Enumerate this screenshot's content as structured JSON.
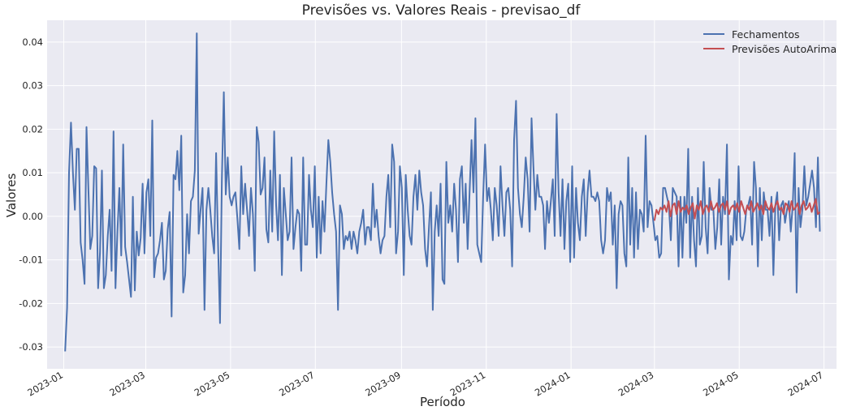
{
  "chart_data": {
    "type": "line",
    "title": "Previsões vs. Valores Reais - previsao_df",
    "xlabel": "Período",
    "ylabel": "Valores",
    "x_range": [
      "2022-12-20",
      "2024-07-10"
    ],
    "ylim": [
      -0.035,
      0.045
    ],
    "y_ticks": [
      -0.03,
      -0.02,
      -0.01,
      0.0,
      0.01,
      0.02,
      0.03,
      0.04
    ],
    "y_tick_labels": [
      "-0.03",
      "-0.02",
      "-0.01",
      "0.00",
      "0.01",
      "0.02",
      "0.03",
      "0.04"
    ],
    "x_ticks": [
      "2023-01-01",
      "2023-03-01",
      "2023-05-01",
      "2023-07-01",
      "2023-09-01",
      "2023-11-01",
      "2024-01-01",
      "2024-03-01",
      "2024-05-01",
      "2024-07-01"
    ],
    "x_tick_labels": [
      "2023-01",
      "2023-03",
      "2023-05",
      "2023-07",
      "2023-09",
      "2023-11",
      "2024-01",
      "2024-03",
      "2024-05",
      "2024-07"
    ],
    "grid": true,
    "legend_position": "top-right",
    "series": [
      {
        "name": "Fechamentos",
        "color": "#4c72b0",
        "x_start": "2023-01-02",
        "x_end": "2024-06-28",
        "values": [
          -0.031,
          -0.021,
          0.01,
          0.0215,
          0.01,
          0.0015,
          0.0155,
          0.0155,
          -0.006,
          -0.01,
          -0.0155,
          0.0205,
          0.0065,
          -0.0075,
          -0.0045,
          0.0115,
          0.011,
          -0.0165,
          -0.0085,
          0.0105,
          -0.0165,
          -0.0135,
          -0.0045,
          0.0015,
          -0.0125,
          0.0195,
          -0.0165,
          -0.0035,
          0.0065,
          -0.009,
          0.0165,
          -0.007,
          -0.0105,
          -0.0145,
          -0.0185,
          0.0045,
          -0.017,
          -0.0035,
          -0.009,
          -0.005,
          0.0075,
          -0.0085,
          0.0055,
          0.0085,
          -0.0045,
          0.022,
          -0.014,
          -0.0095,
          -0.0085,
          -0.0055,
          -0.0015,
          -0.0145,
          -0.0125,
          -0.003,
          0.001,
          -0.023,
          0.0095,
          0.0085,
          0.015,
          0.006,
          0.0185,
          -0.0175,
          -0.0135,
          0.0005,
          -0.0085,
          0.0035,
          0.0045,
          0.0105,
          0.042,
          -0.004,
          0.0015,
          0.0065,
          -0.0215,
          0.0015,
          0.0065,
          0.0015,
          -0.0045,
          -0.0085,
          0.0145,
          -0.0065,
          -0.0245,
          0.0085,
          0.0285,
          0.005,
          0.0135,
          0.0045,
          0.0025,
          0.0045,
          0.0055,
          -0.0005,
          -0.0075,
          0.0115,
          0.0005,
          0.0075,
          0.0015,
          -0.0045,
          0.0065,
          0.0005,
          -0.0125,
          0.0205,
          0.017,
          0.005,
          0.0065,
          0.0135,
          -0.003,
          -0.006,
          0.0105,
          -0.0035,
          0.0195,
          0.0025,
          -0.0055,
          0.0095,
          -0.0135,
          0.0065,
          0.0005,
          -0.0055,
          -0.0035,
          0.0135,
          -0.0075,
          -0.0025,
          0.0015,
          0.0005,
          -0.0125,
          0.0135,
          -0.0065,
          -0.0065,
          0.0095,
          0.0015,
          -0.0025,
          0.0115,
          -0.0095,
          0.0045,
          -0.0085,
          0.0035,
          -0.0035,
          0.0075,
          0.0175,
          0.0125,
          0.0055,
          0.0005,
          -0.0035,
          -0.0215,
          0.0025,
          0.0005,
          -0.0075,
          -0.0045,
          -0.0055,
          -0.0035,
          -0.0075,
          -0.0035,
          -0.0055,
          -0.0085,
          -0.0035,
          -0.0015,
          0.0015,
          -0.0065,
          -0.0025,
          -0.0025,
          -0.0055,
          0.0075,
          -0.0025,
          0.0015,
          -0.0045,
          -0.0085,
          -0.0055,
          -0.0045,
          0.0045,
          0.0095,
          -0.0025,
          0.0165,
          0.0125,
          -0.0085,
          -0.0035,
          0.0115,
          0.0065,
          -0.0135,
          0.0095,
          0.0015,
          -0.0045,
          -0.0065,
          0.0045,
          0.0095,
          0.0015,
          0.0105,
          0.0055,
          0.0025,
          -0.0075,
          -0.0115,
          -0.0025,
          0.0055,
          -0.0215,
          -0.0035,
          0.0025,
          -0.0045,
          0.0075,
          -0.0145,
          -0.0155,
          0.0125,
          -0.0015,
          0.0025,
          -0.0035,
          0.0075,
          0.0015,
          -0.0105,
          0.0085,
          0.0115,
          -0.0015,
          0.0075,
          -0.0075,
          0.0055,
          0.0175,
          0.0055,
          0.0225,
          -0.0065,
          -0.0085,
          -0.0105,
          0.0045,
          0.0165,
          0.0035,
          0.0065,
          0.0015,
          -0.0055,
          0.0065,
          0.0025,
          -0.0045,
          0.0115,
          0.0025,
          -0.0045,
          0.0055,
          0.0065,
          0.0015,
          -0.0115,
          0.0175,
          0.0265,
          0.0065,
          0.0005,
          -0.0025,
          0.0045,
          0.0135,
          0.0085,
          -0.0035,
          0.0225,
          0.0115,
          0.0015,
          0.0095,
          0.0045,
          0.0045,
          0.0025,
          -0.0075,
          0.0035,
          -0.0015,
          0.0035,
          0.0085,
          -0.0045,
          0.0235,
          0.0055,
          -0.0045,
          0.0085,
          -0.0075,
          0.0035,
          0.0075,
          -0.0105,
          0.0115,
          -0.0095,
          0.0065,
          -0.0015,
          -0.0055,
          0.0045,
          0.0085,
          -0.0045,
          0.0055,
          0.0105,
          0.0045,
          0.0045,
          0.0035,
          0.0055,
          0.0035,
          -0.0055,
          -0.0085,
          -0.0055,
          0.0065,
          0.0035,
          0.0055,
          -0.0065,
          0.0025,
          -0.0165,
          0.0005,
          0.0035,
          0.0025,
          -0.0085,
          -0.0115,
          0.0135,
          -0.0065,
          0.0065,
          -0.0095,
          0.0055,
          -0.0075,
          0.0015,
          0.0005,
          -0.0035,
          0.0185,
          -0.0025,
          0.0035,
          0.0025,
          -0.0015,
          -0.0055,
          -0.0045,
          -0.0095,
          -0.0085,
          0.0065,
          0.0065,
          0.0045,
          0.0025,
          -0.0055,
          0.0065,
          0.0055,
          0.0045,
          -0.0115,
          0.0045,
          -0.0095,
          0.0045,
          -0.0015,
          0.0155,
          -0.0095,
          0.0045,
          -0.0055,
          -0.0115,
          0.0065,
          -0.0065,
          -0.0045,
          0.0125,
          -0.0025,
          -0.0085,
          0.0065,
          0.0015,
          0.0015,
          -0.0075,
          -0.0025,
          0.0085,
          -0.0065,
          0.0045,
          0.0005,
          0.0165,
          -0.0145,
          -0.0045,
          -0.0065,
          0.0035,
          -0.0055,
          0.0115,
          -0.0045,
          -0.0055,
          -0.0035,
          0.0015,
          0.0025,
          0.0045,
          -0.0065,
          0.0125,
          0.0065,
          -0.0115,
          0.0065,
          -0.0055,
          0.0055,
          0.0015,
          0.0015,
          -0.0045,
          0.0045,
          -0.0135,
          0.0025,
          0.0055,
          -0.0055,
          0.0025,
          0.0035,
          -0.0015,
          0.0015,
          0.0035,
          -0.0035,
          0.0025,
          0.0145,
          -0.0175,
          0.0065,
          -0.0025,
          0.0015,
          0.0115,
          0.0025,
          0.0045,
          0.0075,
          0.0105,
          0.0065,
          -0.0025,
          0.0135,
          -0.0035
        ]
      },
      {
        "name": "Previsões AutoArima",
        "color": "#c44e52",
        "x_start": "2024-03-01",
        "x_end": "2024-06-28",
        "values": [
          -0.001,
          0.0015,
          0.0005,
          0.002,
          0.0015,
          0.0025,
          0.001,
          0.0035,
          0.0,
          0.0025,
          0.003,
          0.0005,
          0.0035,
          0.001,
          0.002,
          0.0015,
          0.0025,
          0.0005,
          0.002,
          0.003,
          -0.0005,
          0.0025,
          0.0015,
          0.0035,
          0.0005,
          0.002,
          0.0025,
          0.001,
          0.0035,
          0.0015,
          0.002,
          0.003,
          0.001,
          0.0025,
          0.003,
          0.0015,
          0.0035,
          0.0005,
          0.002,
          0.0025,
          0.0015,
          0.003,
          0.001,
          0.0035,
          0.002,
          0.0005,
          0.0025,
          0.0015,
          0.0035,
          0.001,
          0.002,
          0.003,
          0.0015,
          0.0025,
          0.0005,
          0.0035,
          0.002,
          0.0015,
          0.003,
          0.001,
          0.0025,
          0.0035,
          0.0015,
          0.002,
          0.0005,
          0.003,
          0.0025,
          0.001,
          0.0035,
          0.0015,
          0.002,
          0.003,
          0.0005,
          0.0025,
          0.0035,
          0.0015,
          0.002,
          0.003,
          0.001,
          0.0025,
          0.004,
          0.0005,
          0.001
        ]
      }
    ]
  }
}
